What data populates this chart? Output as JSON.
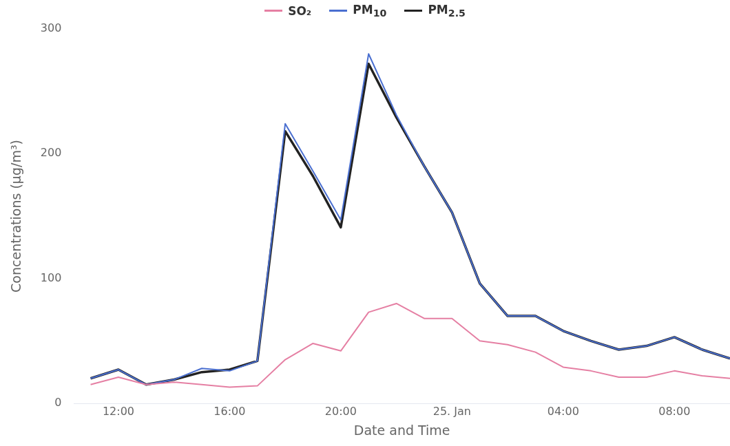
{
  "chart_data": {
    "type": "line",
    "xlabel": "Date and Time",
    "ylabel": "Concentrations (µg/m³)",
    "x": [
      "--01-24T11:00",
      "--01-24T12:00",
      "--01-24T13:00",
      "--01-24T14:00",
      "--01-24T15:00",
      "--01-24T16:00",
      "--01-24T17:00",
      "--01-24T18:00",
      "--01-24T19:00",
      "--01-24T20:00",
      "--01-24T21:00",
      "--01-24T22:00",
      "--01-24T23:00",
      "--01-25T00:00",
      "--01-25T01:00",
      "--01-25T02:00",
      "--01-25T03:00",
      "--01-25T04:00",
      "--01-25T05:00",
      "--01-25T06:00",
      "--01-25T07:00",
      "--01-25T08:00",
      "--01-25T09:00",
      "--01-25T10:00"
    ],
    "xlim": [
      "--01-24T10:24",
      "--01-25T10:00"
    ],
    "xticks": [
      {
        "value": "--01-24T12:00",
        "label": "12:00"
      },
      {
        "value": "--01-24T16:00",
        "label": "16:00"
      },
      {
        "value": "--01-24T20:00",
        "label": "20:00"
      },
      {
        "value": "--01-25T00:00",
        "label": "25. Jan"
      },
      {
        "value": "--01-25T04:00",
        "label": "04:00"
      },
      {
        "value": "--01-25T08:00",
        "label": "08:00"
      }
    ],
    "ylim": [
      0,
      300
    ],
    "yticks": [
      0,
      100,
      200,
      300
    ],
    "series": [
      {
        "name": "SO₂",
        "color": "#e57fa3",
        "values": [
          15,
          21,
          15,
          17,
          15,
          13,
          14,
          35,
          48,
          42,
          73,
          80,
          68,
          68,
          50,
          47,
          41,
          29,
          26,
          21,
          21,
          26,
          22,
          20
        ]
      },
      {
        "name": "PM$_{10}$",
        "color": "#4a6fd0",
        "values": [
          20,
          27,
          15,
          19,
          28,
          26,
          34,
          224,
          186,
          147,
          280,
          231,
          190,
          153,
          96,
          70,
          70,
          58,
          50,
          43,
          46,
          53,
          43,
          36
        ]
      },
      {
        "name": "PM$_{2.5}$",
        "color": "#222222",
        "values": [
          20,
          27,
          15,
          19,
          25,
          27,
          34,
          218,
          182,
          141,
          272,
          229,
          190,
          153,
          96,
          70,
          70,
          58,
          50,
          43,
          46,
          53,
          43,
          36
        ]
      }
    ],
    "grid": false,
    "legend": "top",
    "marker": "none",
    "line_style": "solid"
  }
}
